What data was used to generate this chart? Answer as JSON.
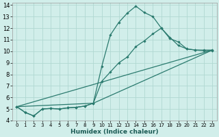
{
  "xlabel": "Humidex (Indice chaleur)",
  "bg_color": "#d1eeea",
  "grid_color": "#b0d8d2",
  "line_color": "#2a7a6e",
  "xlim": [
    -0.5,
    23.5
  ],
  "ylim": [
    4,
    14.2
  ],
  "xticks": [
    0,
    1,
    2,
    3,
    4,
    5,
    6,
    7,
    8,
    9,
    10,
    11,
    12,
    13,
    14,
    15,
    16,
    17,
    18,
    19,
    20,
    21,
    22,
    23
  ],
  "yticks": [
    4,
    5,
    6,
    7,
    8,
    9,
    10,
    11,
    12,
    13,
    14
  ],
  "series1_x": [
    0,
    1,
    2,
    3,
    4,
    5,
    6,
    7,
    8,
    9,
    10,
    11,
    12,
    13,
    14,
    15,
    16,
    17,
    18,
    19,
    20,
    21,
    22,
    23
  ],
  "series1_y": [
    5.2,
    4.7,
    4.4,
    5.0,
    5.05,
    5.0,
    5.1,
    5.15,
    5.25,
    5.5,
    8.7,
    11.4,
    12.5,
    13.3,
    13.9,
    13.35,
    13.0,
    12.0,
    11.1,
    10.8,
    10.2,
    10.1,
    10.1,
    10.1
  ],
  "series2_x": [
    0,
    1,
    2,
    3,
    4,
    5,
    6,
    7,
    8,
    9,
    10,
    11,
    12,
    13,
    14,
    15,
    16,
    17,
    18,
    19,
    20,
    21,
    22,
    23
  ],
  "series2_y": [
    5.2,
    4.7,
    4.4,
    5.0,
    5.05,
    5.0,
    5.1,
    5.15,
    5.25,
    5.5,
    7.4,
    8.2,
    9.0,
    9.5,
    10.4,
    10.9,
    11.5,
    12.0,
    11.2,
    10.5,
    10.2,
    10.1,
    10.05,
    10.05
  ],
  "series3_x": [
    0,
    23
  ],
  "series3_y": [
    5.2,
    10.1
  ],
  "series4_x": [
    0,
    9,
    23
  ],
  "series4_y": [
    5.2,
    5.5,
    10.1
  ]
}
